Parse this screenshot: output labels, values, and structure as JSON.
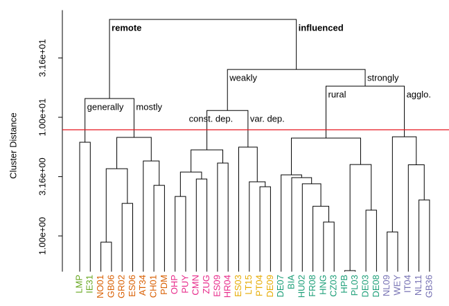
{
  "chart_data": {
    "type": "dendrogram",
    "ylabel": "Cluster Distance",
    "log_scale": true,
    "ylim": [
      0.5,
      80
    ],
    "yticks": [
      {
        "value": 1,
        "label": "1.00e+00"
      },
      {
        "value": 3.16,
        "label": "3.16e+00"
      },
      {
        "value": 10,
        "label": "1.00e+01"
      },
      {
        "value": 31.6,
        "label": "3.16e+01"
      }
    ],
    "leaves": [
      "LMP",
      "IE31",
      "NO01",
      "GB06",
      "GR02",
      "ES06",
      "AT34",
      "CH01",
      "PDM",
      "OHP",
      "PUY",
      "CMN",
      "ZUG",
      "ES09",
      "HR04",
      "ES03",
      "LT15",
      "PT04",
      "DE09",
      "DE07",
      "BIA",
      "HU02",
      "FR08",
      "HNG",
      "CZ03",
      "HPB",
      "PL03",
      "DE03",
      "DE08",
      "NL09",
      "WEY",
      "IT04",
      "NL11",
      "GB36"
    ],
    "leaf_colors": [
      "#66a61e",
      "#66a61e",
      "#d95f02",
      "#d95f02",
      "#d95f02",
      "#d95f02",
      "#d95f02",
      "#d95f02",
      "#d95f02",
      "#e7298a",
      "#e7298a",
      "#e7298a",
      "#e7298a",
      "#e7298a",
      "#e7298a",
      "#e6ab02",
      "#e6ab02",
      "#e6ab02",
      "#e6ab02",
      "#1b9e77",
      "#1b9e77",
      "#1b9e77",
      "#1b9e77",
      "#1b9e77",
      "#1b9e77",
      "#1b9e77",
      "#1b9e77",
      "#1b9e77",
      "#1b9e77",
      "#7570b3",
      "#7570b3",
      "#7570b3",
      "#7570b3",
      "#7570b3"
    ],
    "merges": [
      {
        "pair": [
          -26,
          -27
        ],
        "height": 0.51
      },
      {
        "pair": [
          -3,
          -4
        ],
        "height": 0.886
      },
      {
        "pair": [
          -30,
          -31
        ],
        "height": 1.08
      },
      {
        "pair": [
          -24,
          -25
        ],
        "height": 1.31
      },
      {
        "pair": [
          -28,
          -29
        ],
        "height": 1.65
      },
      {
        "pair": [
          -23,
          4
        ],
        "height": 1.78
      },
      {
        "pair": [
          -5,
          -6
        ],
        "height": 1.88
      },
      {
        "pair": [
          -33,
          -34
        ],
        "height": 2.01
      },
      {
        "pair": [
          -10,
          -11
        ],
        "height": 2.15
      },
      {
        "pair": [
          -18,
          -19
        ],
        "height": 2.6
      },
      {
        "pair": [
          -8,
          -9
        ],
        "height": 2.67
      },
      {
        "pair": [
          -22,
          6
        ],
        "height": 2.75
      },
      {
        "pair": [
          -17,
          10
        ],
        "height": 2.86
      },
      {
        "pair": [
          -12,
          -13
        ],
        "height": 3.02
      },
      {
        "pair": [
          -21,
          12
        ],
        "height": 3.1
      },
      {
        "pair": [
          -20,
          15
        ],
        "height": 3.27
      },
      {
        "pair": [
          9,
          14
        ],
        "height": 3.45
      },
      {
        "pair": [
          2,
          7
        ],
        "height": 3.69
      },
      {
        "pair": [
          1,
          5
        ],
        "height": 4.0
      },
      {
        "pair": [
          -32,
          8
        ],
        "height": 3.98
      },
      {
        "pair": [
          -14,
          -15
        ],
        "height": 4.11
      },
      {
        "pair": [
          -7,
          11
        ],
        "height": 4.28
      },
      {
        "pair": [
          17,
          21
        ],
        "height": 5.31
      },
      {
        "pair": [
          -16,
          13
        ],
        "height": 5.61
      },
      {
        "pair": [
          -1,
          -2
        ],
        "height": 6.16
      },
      {
        "pair": [
          16,
          19
        ],
        "height": 6.68
      },
      {
        "pair": [
          18,
          22
        ],
        "height": 6.77
      },
      {
        "pair": [
          3,
          20
        ],
        "height": 6.85
      },
      {
        "pair": [
          23,
          24
        ],
        "height": 11.4,
        "labels": [
          "const. dep.",
          "var. dep."
        ]
      },
      {
        "pair": [
          25,
          27
        ],
        "height": 14.4,
        "labels": [
          "generally",
          "mostly"
        ]
      },
      {
        "pair": [
          26,
          28
        ],
        "height": 18.3,
        "labels": [
          "rural",
          "agglo."
        ]
      },
      {
        "pair": [
          29,
          31
        ],
        "height": 25.3,
        "labels": [
          "weakly",
          "strongly"
        ]
      },
      {
        "pair": [
          30,
          32
        ],
        "height": 66.8,
        "labels": [
          "remote",
          "influenced"
        ],
        "bold": true
      }
    ],
    "cut_height": 7.85,
    "cut_color": "#e8141e"
  }
}
